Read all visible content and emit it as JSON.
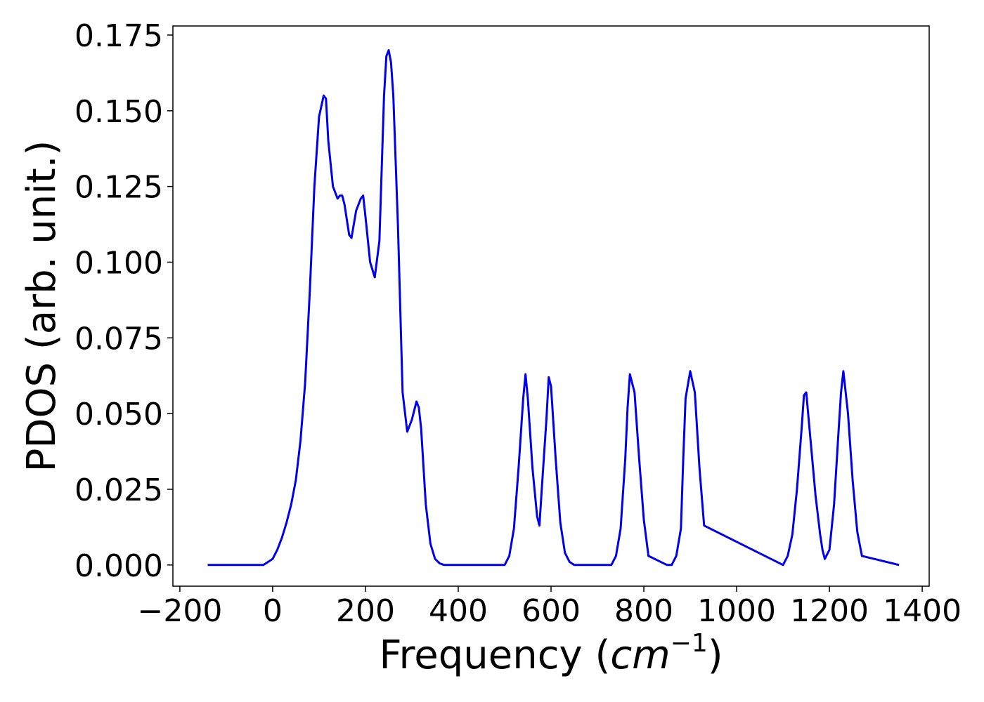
{
  "chart_data": {
    "type": "line",
    "xlabel": "Frequency (",
    "xlabel_math": "cm",
    "xlabel_sup": "−1",
    "xlabel_close": ")",
    "ylabel": "PDOS (arb. unit.)",
    "xlim": [
      -215,
      1415
    ],
    "ylim": [
      -0.007,
      0.178
    ],
    "x_ticks": [
      -200,
      0,
      200,
      400,
      600,
      800,
      1000,
      1200,
      1400
    ],
    "x_tick_labels": [
      "−200",
      "0",
      "200",
      "400",
      "600",
      "800",
      "1000",
      "1200",
      "1400"
    ],
    "y_ticks": [
      0.0,
      0.025,
      0.05,
      0.075,
      0.1,
      0.125,
      0.15,
      0.175
    ],
    "y_tick_labels": [
      "0.000",
      "0.025",
      "0.050",
      "0.075",
      "0.100",
      "0.125",
      "0.150",
      "0.175"
    ],
    "grid": false,
    "line_color": "#0000ee",
    "series": [
      {
        "x": [
          -140,
          -20,
          -10,
          0,
          10,
          20,
          30,
          40,
          50,
          60,
          70,
          80,
          90,
          100,
          110,
          115,
          120,
          130,
          140,
          145,
          150,
          155,
          160,
          165,
          170,
          180,
          190,
          195,
          200,
          210,
          220,
          230,
          240,
          245,
          250,
          255,
          260,
          270,
          280,
          290,
          300,
          310,
          315,
          320,
          330,
          340,
          350,
          360,
          370,
          390,
          500,
          510,
          520,
          530,
          540,
          545,
          550,
          560,
          570,
          575,
          580,
          590,
          595,
          600,
          610,
          620,
          630,
          640,
          650,
          700,
          730,
          740,
          750,
          760,
          765,
          770,
          780,
          790,
          800,
          810,
          850,
          860,
          870,
          880,
          885,
          890,
          900,
          910,
          920,
          930,
          1100,
          1110,
          1120,
          1130,
          1140,
          1145,
          1150,
          1160,
          1170,
          1180,
          1185,
          1190,
          1200,
          1210,
          1220,
          1225,
          1230,
          1240,
          1250,
          1260,
          1270,
          1350
        ],
        "y": [
          0,
          0,
          0.001,
          0.002,
          0.005,
          0.009,
          0.014,
          0.02,
          0.028,
          0.041,
          0.06,
          0.09,
          0.125,
          0.148,
          0.155,
          0.154,
          0.14,
          0.125,
          0.121,
          0.122,
          0.122,
          0.119,
          0.114,
          0.109,
          0.108,
          0.117,
          0.121,
          0.122,
          0.115,
          0.1,
          0.095,
          0.107,
          0.155,
          0.168,
          0.17,
          0.166,
          0.155,
          0.112,
          0.057,
          0.044,
          0.048,
          0.054,
          0.052,
          0.045,
          0.02,
          0.007,
          0.002,
          0.0005,
          0,
          0,
          0,
          0.003,
          0.012,
          0.032,
          0.055,
          0.063,
          0.055,
          0.032,
          0.016,
          0.013,
          0.025,
          0.048,
          0.062,
          0.059,
          0.035,
          0.014,
          0.004,
          0.001,
          0,
          0,
          0,
          0.003,
          0.012,
          0.035,
          0.052,
          0.063,
          0.057,
          0.035,
          0.015,
          0.003,
          0,
          0,
          0.003,
          0.012,
          0.035,
          0.055,
          0.064,
          0.057,
          0.032,
          0.013,
          0,
          0.003,
          0.01,
          0.025,
          0.045,
          0.056,
          0.057,
          0.04,
          0.023,
          0.01,
          0.005,
          0.002,
          0.005,
          0.02,
          0.045,
          0.057,
          0.064,
          0.05,
          0.028,
          0.011,
          0.003,
          0
        ]
      }
    ]
  }
}
